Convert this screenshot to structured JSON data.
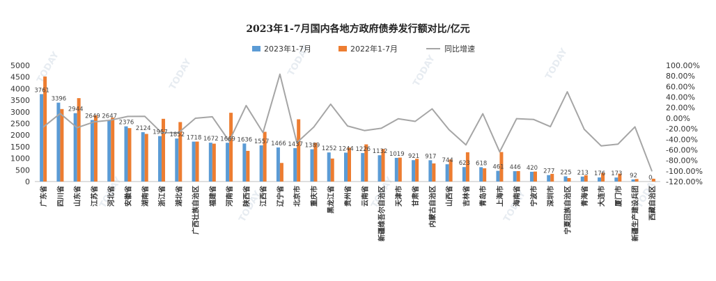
{
  "chart_data": {
    "type": "bar",
    "title": "2023年1-7月国内各地方政府债券发行额对比/亿元",
    "categories": [
      "广东省",
      "四川省",
      "山东省",
      "江苏省",
      "河北省",
      "安徽省",
      "湖南省",
      "浙江省",
      "湖北省",
      "广西壮族自治区",
      "福建省",
      "河南省",
      "陕西省",
      "江西省",
      "辽宁省",
      "北京市",
      "重庆市",
      "黑龙江省",
      "贵州省",
      "云南省",
      "新疆维吾尔自治区",
      "天津市",
      "甘肃省",
      "内蒙古自治区",
      "山西省",
      "吉林省",
      "青岛市",
      "上海市",
      "海南省",
      "宁波市",
      "深圳市",
      "宁夏回族自治区",
      "青海省",
      "大连市",
      "厦门市",
      "新疆生产建设兵团",
      "西藏自治区"
    ],
    "series": [
      {
        "name": "2023年1-7月",
        "axis": "left",
        "color": "#5b9bd5",
        "values": [
          3761,
          3396,
          2944,
          2649,
          2647,
          2376,
          2124,
          1957,
          1852,
          1718,
          1672,
          1669,
          1636,
          1557,
          1466,
          1437,
          1389,
          1252,
          1244,
          1226,
          1132,
          1019,
          921,
          917,
          744,
          623,
          618,
          461,
          446,
          420,
          277,
          225,
          213,
          176,
          173,
          92,
          0
        ]
      },
      {
        "name": "2022年1-7月",
        "axis": "left",
        "color": "#ed7d31",
        "values": [
          4520,
          3120,
          3590,
          2850,
          2750,
          2300,
          2050,
          2700,
          2560,
          1720,
          1630,
          2960,
          1320,
          2140,
          800,
          2680,
          1670,
          990,
          1460,
          1600,
          1400,
          1030,
          980,
          780,
          950,
          1260,
          570,
          1270,
          450,
          430,
          330,
          150,
          270,
          370,
          340,
          110,
          120
        ]
      },
      {
        "name": "同比增速",
        "axis": "right",
        "color": "#a5a5a5",
        "values": [
          -16.8,
          8.8,
          -18.0,
          -7.1,
          -3.7,
          3.3,
          3.6,
          -27.5,
          -27.7,
          -0.1,
          2.6,
          -43.6,
          23.9,
          -27.2,
          83.3,
          -46.4,
          -16.8,
          26.5,
          -14.8,
          -23.4,
          -19.1,
          -1.1,
          -6.0,
          17.6,
          -21.7,
          -50.6,
          8.4,
          -63.7,
          -0.9,
          -2.3,
          -16.1,
          50.0,
          -21.1,
          -52.4,
          -49.1,
          -16.4,
          -100.0
        ]
      }
    ],
    "y_left": {
      "min": 0,
      "max": 5000,
      "step": 500,
      "ticks": [
        "0",
        "500",
        "1000",
        "1500",
        "2000",
        "2500",
        "3000",
        "3500",
        "4000",
        "4500",
        "5000"
      ]
    },
    "y_right": {
      "min": -120,
      "max": 100,
      "step": 20,
      "ticks": [
        "-120.00%",
        "-100.00%",
        "-80.00%",
        "-60.00%",
        "-40.00%",
        "-20.00%",
        "0.00%",
        "20.00%",
        "40.00%",
        "60.00%",
        "80.00%",
        "100.00%"
      ]
    },
    "legend_position": "top",
    "grid": false
  },
  "watermark_text": "TODAY"
}
